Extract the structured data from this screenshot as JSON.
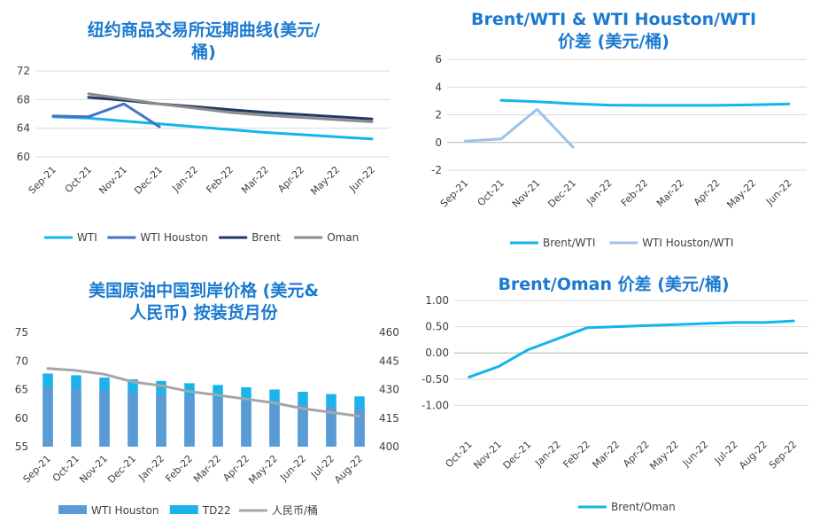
{
  "chart_data": [
    {
      "type": "line",
      "title": "纽约商品交易所远期曲线(美元/桶)",
      "title_lines": [
        "纽约商品交易所远期曲线(美元/",
        "桶)"
      ],
      "categories": [
        "Sep-21",
        "Oct-21",
        "Nov-21",
        "Dec-21",
        "Jan-22",
        "Feb-22",
        "Mar-22",
        "Apr-22",
        "May-22",
        "Jun-22"
      ],
      "ylim": [
        60,
        72
      ],
      "yticks": [
        "60",
        "64",
        "68",
        "72"
      ],
      "legend_position": "bottom",
      "grid": true,
      "series": [
        {
          "name": "WTI",
          "color": "#14b4ec",
          "values": [
            65.6,
            65.4,
            65.0,
            64.6,
            64.2,
            63.8,
            63.4,
            63.1,
            62.8,
            62.5
          ]
        },
        {
          "name": "WTI Houston",
          "color": "#4472c4",
          "values": [
            65.7,
            65.6,
            67.4,
            64.2,
            null,
            null,
            null,
            null,
            null,
            null
          ]
        },
        {
          "name": "Brent",
          "color": "#203864",
          "values": [
            null,
            68.3,
            67.9,
            67.4,
            67.0,
            66.6,
            66.2,
            65.9,
            65.6,
            65.3
          ]
        },
        {
          "name": "Oman",
          "color": "#8c8c8c",
          "values": [
            null,
            68.8,
            68.1,
            67.4,
            66.8,
            66.2,
            65.8,
            65.5,
            65.2,
            64.9
          ]
        }
      ]
    },
    {
      "type": "line",
      "title": "Brent/WTI & WTI Houston/WTI 价差 (美元/桶)",
      "title_lines": [
        "Brent/WTI & WTI Houston/WTI",
        "价差 (美元/桶)"
      ],
      "categories": [
        "Sep-21",
        "Oct-21",
        "Nov-21",
        "Dec-21",
        "Jan-22",
        "Feb-22",
        "Mar-22",
        "Apr-22",
        "May-22",
        "Jun-22"
      ],
      "ylim": [
        -2,
        6
      ],
      "yticks": [
        "-2",
        "0",
        "2",
        "4",
        "6"
      ],
      "legend_position": "bottom",
      "grid": true,
      "series": [
        {
          "name": "Brent/WTI",
          "color": "#14b4ec",
          "values": [
            null,
            3.05,
            2.95,
            2.8,
            2.7,
            2.68,
            2.68,
            2.68,
            2.72,
            2.78
          ]
        },
        {
          "name": "WTI Houston/WTI",
          "color": "#9dc3e6",
          "values": [
            0.1,
            0.25,
            2.4,
            -0.35,
            null,
            null,
            null,
            null,
            null,
            null
          ]
        }
      ]
    },
    {
      "type": "bar",
      "title": "美国原油中国到岸价格 (美元&人民币) 按装货月份",
      "title_lines": [
        "美国原油中国到岸价格 (美元&",
        "人民币) 按装货月份"
      ],
      "categories": [
        "Sep-21",
        "Oct-21",
        "Nov-21",
        "Dec-21",
        "Jan-22",
        "Feb-22",
        "Mar-22",
        "Apr-22",
        "May-22",
        "Jun-22",
        "Jul-22",
        "Aug-22"
      ],
      "ylim": [
        55,
        75
      ],
      "yticks": [
        "55",
        "60",
        "65",
        "70",
        "75"
      ],
      "y2lim": [
        400,
        460
      ],
      "y2ticks": [
        "400",
        "415",
        "430",
        "445",
        "460"
      ],
      "legend_position": "bottom",
      "grid": false,
      "series": [
        {
          "name": "WTI Houston",
          "type": "bar",
          "color": "#5b9bd5",
          "values": [
            65.5,
            65.2,
            64.8,
            64.5,
            64.2,
            63.8,
            63.5,
            63.0,
            62.8,
            62.4,
            62.0,
            61.6
          ]
        },
        {
          "name": "TD22",
          "type": "bar",
          "color": "#1cb3ec",
          "values": [
            67.8,
            67.5,
            67.1,
            66.8,
            66.5,
            66.1,
            65.8,
            65.4,
            65.0,
            64.6,
            64.2,
            63.8
          ]
        },
        {
          "name": "人民币/桶",
          "type": "line",
          "axis": "right",
          "color": "#a6a6a6",
          "values": [
            441,
            440,
            438,
            434,
            432,
            429,
            427,
            425,
            423,
            420,
            418,
            416
          ]
        }
      ]
    },
    {
      "type": "line",
      "title": "Brent/Oman 价差 (美元/桶)",
      "title_lines": [
        "Brent/Oman 价差 (美元/桶)"
      ],
      "categories": [
        "Oct-21",
        "Nov-21",
        "Dec-21",
        "Jan-22",
        "Feb-22",
        "Mar-22",
        "Apr-22",
        "May-22",
        "Jun-22",
        "Jul-22",
        "Aug-22",
        "Sep-22"
      ],
      "ylim": [
        -1.5,
        1.0
      ],
      "yticks": [
        "-1.00",
        "-0.50",
        "0.00",
        "0.50",
        "1.00"
      ],
      "legend_position": "bottom",
      "grid": true,
      "series": [
        {
          "name": "Brent/Oman",
          "color": "#14b4ec",
          "values": [
            -0.46,
            -0.26,
            0.06,
            0.27,
            0.48,
            0.5,
            0.52,
            0.54,
            0.56,
            0.58,
            0.58,
            0.61
          ]
        }
      ]
    }
  ]
}
